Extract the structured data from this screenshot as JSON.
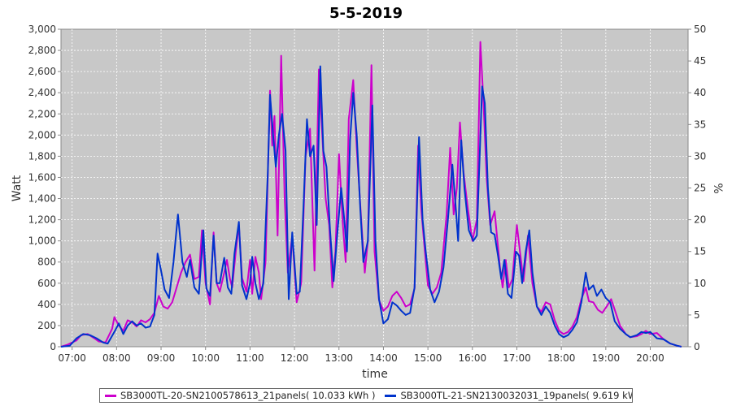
{
  "chart_data": {
    "type": "line",
    "title": "5-5-2019",
    "xlabel": "time",
    "ylabel": "Watt",
    "y2label": "%",
    "ylim": [
      0,
      3000
    ],
    "y2lim": [
      0,
      50
    ],
    "xlim": [
      6.75,
      20.85
    ],
    "y_ticks": [
      "0",
      "200",
      "400",
      "600",
      "800",
      "1,000",
      "1,200",
      "1,400",
      "1,600",
      "1,800",
      "2,000",
      "2,200",
      "2,400",
      "2,600",
      "2,800",
      "3,000"
    ],
    "y2_ticks": [
      "0",
      "5",
      "10",
      "15",
      "20",
      "25",
      "30",
      "35",
      "40",
      "45",
      "50"
    ],
    "x_ticks": [
      "07:00",
      "08:00",
      "09:00",
      "10:00",
      "11:00",
      "12:00",
      "13:00",
      "14:00",
      "15:00",
      "16:00",
      "17:00",
      "18:00",
      "19:00",
      "20:00"
    ],
    "grid": true,
    "legend_position": "bottom",
    "series": [
      {
        "name": "SB3000TL-20-SN2100578613_21panels( 10.033 kWh )",
        "color": "#cc00cc",
        "points": [
          [
            6.75,
            0
          ],
          [
            6.9,
            20
          ],
          [
            7.1,
            60
          ],
          [
            7.2,
            110
          ],
          [
            7.35,
            120
          ],
          [
            7.5,
            80
          ],
          [
            7.6,
            50
          ],
          [
            7.75,
            40
          ],
          [
            7.9,
            170
          ],
          [
            7.95,
            280
          ],
          [
            8.05,
            200
          ],
          [
            8.15,
            150
          ],
          [
            8.25,
            250
          ],
          [
            8.35,
            230
          ],
          [
            8.45,
            190
          ],
          [
            8.55,
            250
          ],
          [
            8.65,
            230
          ],
          [
            8.75,
            260
          ],
          [
            8.85,
            320
          ],
          [
            8.95,
            480
          ],
          [
            9.05,
            380
          ],
          [
            9.15,
            360
          ],
          [
            9.25,
            420
          ],
          [
            9.35,
            560
          ],
          [
            9.45,
            700
          ],
          [
            9.55,
            800
          ],
          [
            9.65,
            870
          ],
          [
            9.75,
            640
          ],
          [
            9.85,
            660
          ],
          [
            9.92,
            1100
          ],
          [
            10.0,
            600
          ],
          [
            10.1,
            400
          ],
          [
            10.18,
            1080
          ],
          [
            10.25,
            600
          ],
          [
            10.32,
            520
          ],
          [
            10.42,
            700
          ],
          [
            10.48,
            820
          ],
          [
            10.55,
            640
          ],
          [
            10.6,
            560
          ],
          [
            10.68,
            900
          ],
          [
            10.75,
            1150
          ],
          [
            10.82,
            650
          ],
          [
            10.92,
            520
          ],
          [
            11.0,
            820
          ],
          [
            11.05,
            500
          ],
          [
            11.12,
            850
          ],
          [
            11.2,
            700
          ],
          [
            11.25,
            450
          ],
          [
            11.35,
            800
          ],
          [
            11.45,
            2420
          ],
          [
            11.5,
            1900
          ],
          [
            11.55,
            2180
          ],
          [
            11.62,
            1050
          ],
          [
            11.7,
            2750
          ],
          [
            11.78,
            1400
          ],
          [
            11.85,
            700
          ],
          [
            11.95,
            1050
          ],
          [
            12.05,
            420
          ],
          [
            12.15,
            600
          ],
          [
            12.25,
            1800
          ],
          [
            12.35,
            2060
          ],
          [
            12.45,
            720
          ],
          [
            12.55,
            2620
          ],
          [
            12.6,
            2200
          ],
          [
            12.65,
            1800
          ],
          [
            12.7,
            1400
          ],
          [
            12.78,
            1150
          ],
          [
            12.85,
            560
          ],
          [
            12.92,
            900
          ],
          [
            13.0,
            1820
          ],
          [
            13.08,
            1200
          ],
          [
            13.15,
            800
          ],
          [
            13.22,
            2150
          ],
          [
            13.32,
            2520
          ],
          [
            13.4,
            1880
          ],
          [
            13.5,
            1200
          ],
          [
            13.58,
            700
          ],
          [
            13.65,
            1000
          ],
          [
            13.73,
            2660
          ],
          [
            13.8,
            900
          ],
          [
            13.9,
            440
          ],
          [
            14.0,
            340
          ],
          [
            14.1,
            380
          ],
          [
            14.2,
            480
          ],
          [
            14.3,
            520
          ],
          [
            14.4,
            460
          ],
          [
            14.5,
            380
          ],
          [
            14.6,
            400
          ],
          [
            14.7,
            550
          ],
          [
            14.78,
            1900
          ],
          [
            14.85,
            1300
          ],
          [
            14.92,
            960
          ],
          [
            15.0,
            580
          ],
          [
            15.1,
            500
          ],
          [
            15.2,
            560
          ],
          [
            15.3,
            700
          ],
          [
            15.42,
            1250
          ],
          [
            15.5,
            1880
          ],
          [
            15.58,
            1250
          ],
          [
            15.65,
            1500
          ],
          [
            15.72,
            2120
          ],
          [
            15.8,
            1650
          ],
          [
            15.9,
            1300
          ],
          [
            16.0,
            1000
          ],
          [
            16.1,
            1200
          ],
          [
            16.18,
            2880
          ],
          [
            16.25,
            2300
          ],
          [
            16.32,
            1600
          ],
          [
            16.4,
            1150
          ],
          [
            16.5,
            1280
          ],
          [
            16.58,
            930
          ],
          [
            16.62,
            750
          ],
          [
            16.68,
            560
          ],
          [
            16.75,
            820
          ],
          [
            16.82,
            560
          ],
          [
            16.9,
            640
          ],
          [
            17.0,
            1150
          ],
          [
            17.07,
            900
          ],
          [
            17.15,
            620
          ],
          [
            17.25,
            1050
          ],
          [
            17.35,
            600
          ],
          [
            17.45,
            380
          ],
          [
            17.55,
            330
          ],
          [
            17.65,
            420
          ],
          [
            17.75,
            400
          ],
          [
            17.85,
            250
          ],
          [
            17.95,
            150
          ],
          [
            18.05,
            120
          ],
          [
            18.15,
            140
          ],
          [
            18.25,
            190
          ],
          [
            18.35,
            280
          ],
          [
            18.45,
            450
          ],
          [
            18.55,
            560
          ],
          [
            18.62,
            430
          ],
          [
            18.72,
            420
          ],
          [
            18.82,
            350
          ],
          [
            18.92,
            320
          ],
          [
            19.02,
            380
          ],
          [
            19.12,
            450
          ],
          [
            19.2,
            350
          ],
          [
            19.32,
            200
          ],
          [
            19.45,
            120
          ],
          [
            19.55,
            90
          ],
          [
            19.7,
            100
          ],
          [
            19.8,
            120
          ],
          [
            19.9,
            150
          ],
          [
            20.0,
            120
          ],
          [
            20.15,
            130
          ],
          [
            20.3,
            70
          ],
          [
            20.45,
            30
          ],
          [
            20.6,
            10
          ],
          [
            20.7,
            0
          ]
        ]
      },
      {
        "name": "SB3000TL-21-SN2130032031_19panels( 9.619 kWh )",
        "color": "#0033cc",
        "points": [
          [
            6.75,
            0
          ],
          [
            6.95,
            10
          ],
          [
            7.1,
            80
          ],
          [
            7.25,
            120
          ],
          [
            7.4,
            110
          ],
          [
            7.55,
            80
          ],
          [
            7.7,
            40
          ],
          [
            7.8,
            30
          ],
          [
            7.95,
            140
          ],
          [
            8.05,
            220
          ],
          [
            8.15,
            120
          ],
          [
            8.25,
            200
          ],
          [
            8.35,
            240
          ],
          [
            8.45,
            200
          ],
          [
            8.55,
            220
          ],
          [
            8.65,
            180
          ],
          [
            8.75,
            190
          ],
          [
            8.85,
            300
          ],
          [
            8.92,
            880
          ],
          [
            9.0,
            720
          ],
          [
            9.08,
            540
          ],
          [
            9.18,
            460
          ],
          [
            9.28,
            800
          ],
          [
            9.38,
            1250
          ],
          [
            9.48,
            800
          ],
          [
            9.58,
            660
          ],
          [
            9.65,
            820
          ],
          [
            9.75,
            560
          ],
          [
            9.85,
            500
          ],
          [
            9.95,
            1100
          ],
          [
            10.02,
            550
          ],
          [
            10.1,
            480
          ],
          [
            10.18,
            1050
          ],
          [
            10.25,
            600
          ],
          [
            10.32,
            600
          ],
          [
            10.42,
            840
          ],
          [
            10.5,
            560
          ],
          [
            10.58,
            500
          ],
          [
            10.65,
            880
          ],
          [
            10.75,
            1180
          ],
          [
            10.82,
            580
          ],
          [
            10.92,
            450
          ],
          [
            11.0,
            600
          ],
          [
            11.05,
            850
          ],
          [
            11.12,
            600
          ],
          [
            11.2,
            450
          ],
          [
            11.3,
            600
          ],
          [
            11.4,
            1650
          ],
          [
            11.45,
            2380
          ],
          [
            11.52,
            2000
          ],
          [
            11.58,
            1700
          ],
          [
            11.65,
            2000
          ],
          [
            11.72,
            2200
          ],
          [
            11.8,
            1850
          ],
          [
            11.87,
            450
          ],
          [
            11.95,
            1080
          ],
          [
            12.05,
            500
          ],
          [
            12.12,
            520
          ],
          [
            12.2,
            1300
          ],
          [
            12.28,
            2150
          ],
          [
            12.35,
            1800
          ],
          [
            12.43,
            1900
          ],
          [
            12.5,
            1150
          ],
          [
            12.58,
            2650
          ],
          [
            12.65,
            1850
          ],
          [
            12.72,
            1700
          ],
          [
            12.8,
            1100
          ],
          [
            12.88,
            620
          ],
          [
            12.95,
            1000
          ],
          [
            13.05,
            1500
          ],
          [
            13.12,
            1200
          ],
          [
            13.18,
            900
          ],
          [
            13.25,
            1950
          ],
          [
            13.32,
            2400
          ],
          [
            13.4,
            2000
          ],
          [
            13.48,
            1300
          ],
          [
            13.55,
            800
          ],
          [
            13.65,
            1000
          ],
          [
            13.75,
            2280
          ],
          [
            13.82,
            1000
          ],
          [
            13.9,
            450
          ],
          [
            14.0,
            220
          ],
          [
            14.1,
            260
          ],
          [
            14.2,
            420
          ],
          [
            14.3,
            390
          ],
          [
            14.4,
            340
          ],
          [
            14.5,
            300
          ],
          [
            14.6,
            320
          ],
          [
            14.7,
            560
          ],
          [
            14.8,
            1980
          ],
          [
            14.88,
            1200
          ],
          [
            14.95,
            900
          ],
          [
            15.05,
            540
          ],
          [
            15.15,
            420
          ],
          [
            15.25,
            520
          ],
          [
            15.35,
            750
          ],
          [
            15.45,
            1200
          ],
          [
            15.55,
            1720
          ],
          [
            15.62,
            1350
          ],
          [
            15.68,
            1000
          ],
          [
            15.75,
            1950
          ],
          [
            15.82,
            1500
          ],
          [
            15.92,
            1100
          ],
          [
            16.02,
            1000
          ],
          [
            16.1,
            1050
          ],
          [
            16.22,
            2460
          ],
          [
            16.28,
            2300
          ],
          [
            16.35,
            1500
          ],
          [
            16.42,
            1080
          ],
          [
            16.5,
            1060
          ],
          [
            16.58,
            850
          ],
          [
            16.65,
            640
          ],
          [
            16.72,
            820
          ],
          [
            16.8,
            500
          ],
          [
            16.88,
            460
          ],
          [
            16.98,
            900
          ],
          [
            17.05,
            860
          ],
          [
            17.12,
            600
          ],
          [
            17.2,
            900
          ],
          [
            17.28,
            1100
          ],
          [
            17.35,
            700
          ],
          [
            17.45,
            380
          ],
          [
            17.55,
            300
          ],
          [
            17.65,
            380
          ],
          [
            17.75,
            320
          ],
          [
            17.85,
            200
          ],
          [
            17.95,
            120
          ],
          [
            18.05,
            90
          ],
          [
            18.15,
            110
          ],
          [
            18.25,
            160
          ],
          [
            18.35,
            230
          ],
          [
            18.45,
            420
          ],
          [
            18.55,
            700
          ],
          [
            18.62,
            540
          ],
          [
            18.72,
            580
          ],
          [
            18.8,
            480
          ],
          [
            18.9,
            540
          ],
          [
            19.0,
            460
          ],
          [
            19.1,
            420
          ],
          [
            19.2,
            240
          ],
          [
            19.32,
            170
          ],
          [
            19.45,
            120
          ],
          [
            19.55,
            90
          ],
          [
            19.7,
            110
          ],
          [
            19.8,
            140
          ],
          [
            19.9,
            130
          ],
          [
            20.0,
            140
          ],
          [
            20.15,
            80
          ],
          [
            20.3,
            70
          ],
          [
            20.45,
            30
          ],
          [
            20.6,
            10
          ],
          [
            20.7,
            0
          ]
        ]
      }
    ]
  }
}
